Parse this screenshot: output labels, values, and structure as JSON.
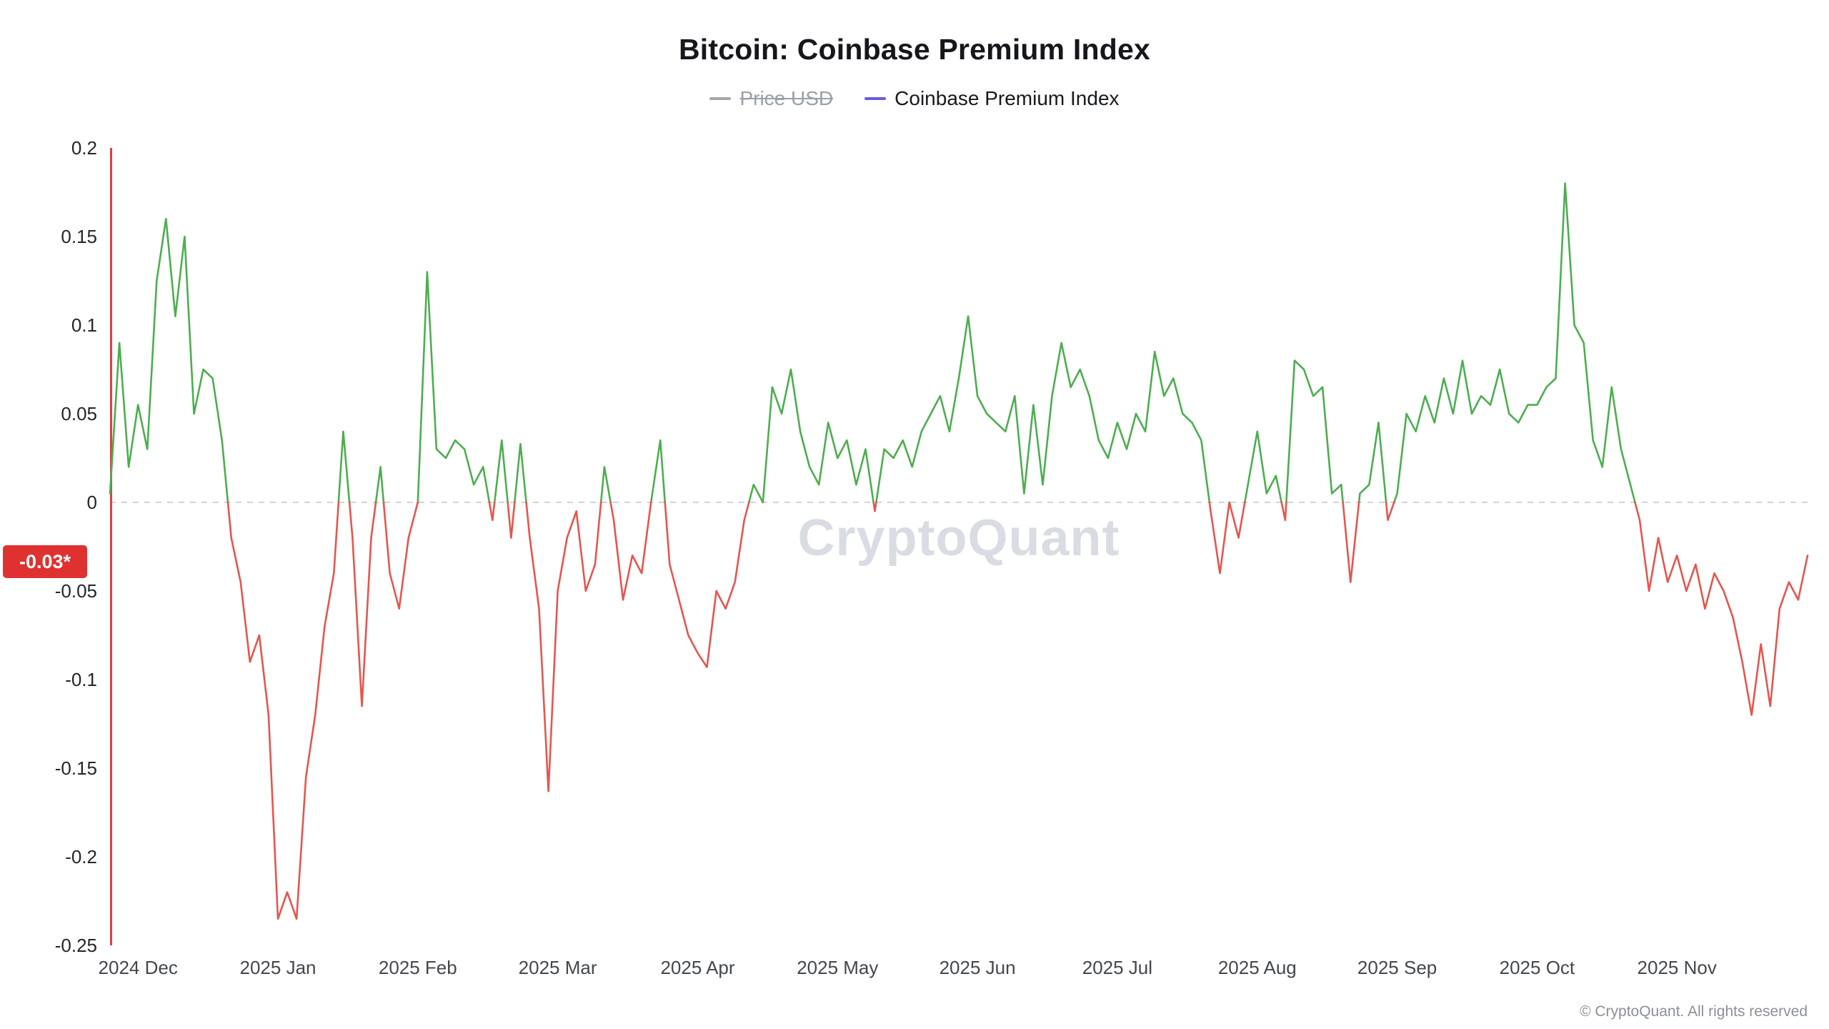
{
  "title": "Bitcoin: Coinbase Premium Index",
  "watermark": "CryptoQuant",
  "footer": "© CryptoQuant. All rights reserved",
  "legend": {
    "price": {
      "label": "Price USD",
      "color": "#a2a7ad",
      "hidden": true
    },
    "premium": {
      "label": "Coinbase Premium Index",
      "color": "#6560d8",
      "hidden": false
    }
  },
  "chart_data": {
    "type": "line",
    "title": "Bitcoin: Coinbase Premium Index",
    "series_name": "Coinbase Premium Index",
    "x_tick_labels": [
      "2024 Dec",
      "2025 Jan",
      "2025 Feb",
      "2025 Mar",
      "2025 Apr",
      "2025 May",
      "2025 Jun",
      "2025 Jul",
      "2025 Aug",
      "2025 Sep",
      "2025 Oct",
      "2025 Nov"
    ],
    "y_tick_labels": [
      "0.2",
      "0.15",
      "0.1",
      "0.05",
      "0",
      "-0.05",
      "-0.1",
      "-0.15",
      "-0.2",
      "-0.25"
    ],
    "y_tick_values": [
      0.2,
      0.15,
      0.1,
      0.05,
      0,
      -0.05,
      -0.1,
      -0.15,
      -0.2,
      -0.25
    ],
    "ylim": [
      -0.25,
      0.2
    ],
    "zero_line_dashed": true,
    "legend_position": "top",
    "grid": false,
    "positive_color": "#4cae4f",
    "negative_color": "#e4564e",
    "badge_color": "#e03131",
    "axis_line_color": "#e0403c",
    "zero_line_color": "#c4c6ca",
    "latest_value": -0.03,
    "latest_value_label": "-0.03*",
    "lead_points": 3,
    "points_per_month": 15,
    "values": [
      0.005,
      0.09,
      0.02,
      0.055,
      0.03,
      0.125,
      0.16,
      0.105,
      0.15,
      0.05,
      0.075,
      0.07,
      0.035,
      -0.02,
      -0.045,
      -0.09,
      -0.075,
      -0.12,
      -0.235,
      -0.22,
      -0.235,
      -0.155,
      -0.12,
      -0.07,
      -0.04,
      0.04,
      -0.02,
      -0.115,
      -0.02,
      0.02,
      -0.04,
      -0.06,
      -0.02,
      0,
      0.13,
      0.03,
      0.025,
      0.035,
      0.03,
      0.01,
      0.02,
      -0.01,
      0.035,
      -0.02,
      0.033,
      -0.02,
      -0.06,
      -0.163,
      -0.05,
      -0.02,
      -0.005,
      -0.05,
      -0.035,
      0.02,
      -0.01,
      -0.055,
      -0.03,
      -0.04,
      0,
      0.035,
      -0.035,
      -0.055,
      -0.075,
      -0.085,
      -0.093,
      -0.05,
      -0.06,
      -0.045,
      -0.01,
      0.01,
      0,
      0.065,
      0.05,
      0.075,
      0.04,
      0.02,
      0.01,
      0.045,
      0.025,
      0.035,
      0.01,
      0.03,
      -0.005,
      0.03,
      0.025,
      0.035,
      0.02,
      0.04,
      0.05,
      0.06,
      0.04,
      0.07,
      0.105,
      0.06,
      0.05,
      0.045,
      0.04,
      0.06,
      0.005,
      0.055,
      0.01,
      0.06,
      0.09,
      0.065,
      0.075,
      0.06,
      0.035,
      0.025,
      0.045,
      0.03,
      0.05,
      0.04,
      0.085,
      0.06,
      0.07,
      0.05,
      0.045,
      0.035,
      -0.005,
      -0.04,
      0,
      -0.02,
      0.01,
      0.04,
      0.005,
      0.015,
      -0.01,
      0.08,
      0.075,
      0.06,
      0.065,
      0.005,
      0.01,
      -0.045,
      0.005,
      0.01,
      0.045,
      -0.01,
      0.005,
      0.05,
      0.04,
      0.06,
      0.045,
      0.07,
      0.05,
      0.08,
      0.05,
      0.06,
      0.055,
      0.075,
      0.05,
      0.045,
      0.055,
      0.055,
      0.065,
      0.07,
      0.18,
      0.1,
      0.09,
      0.035,
      0.02,
      0.065,
      0.03,
      0.01,
      -0.01,
      -0.05,
      -0.02,
      -0.045,
      -0.03,
      -0.05,
      -0.035,
      -0.06,
      -0.04,
      -0.05,
      -0.065,
      -0.09,
      -0.12,
      -0.08,
      -0.115,
      -0.06,
      -0.045,
      -0.055,
      -0.03
    ]
  }
}
